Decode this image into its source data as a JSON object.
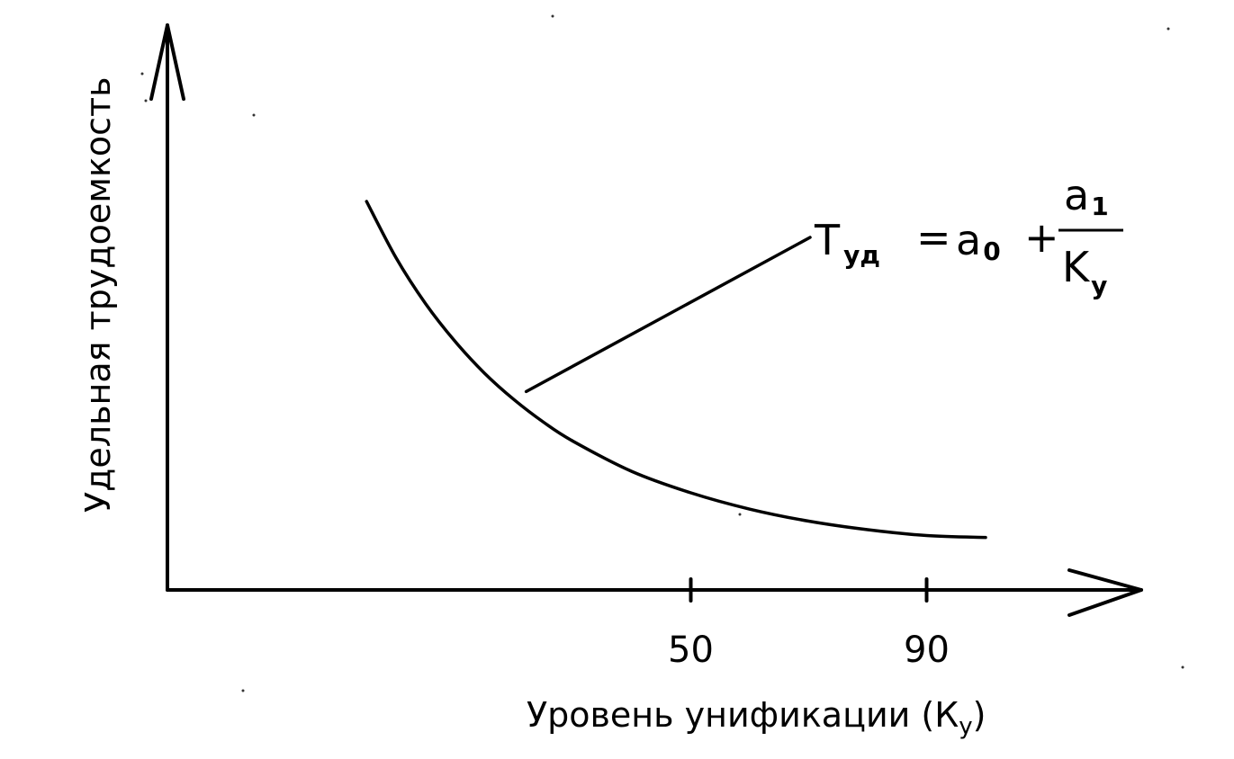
{
  "chart_data": {
    "type": "line",
    "title": "",
    "xlabel": "Уровень унификации (К",
    "xlabel_sub": "у",
    "xlabel_close": ")",
    "ylabel": "Удельная трудоемкость",
    "xticks": [
      {
        "value": 50,
        "label": "50"
      },
      {
        "value": 90,
        "label": "90"
      }
    ],
    "xlim": [
      -20,
      135
    ],
    "ylim": [
      0,
      1.2
    ],
    "grid": false,
    "legend": "none",
    "series": [
      {
        "x": [
          -5,
          0,
          5,
          10,
          15,
          20,
          25,
          30,
          40,
          50,
          60,
          70,
          80,
          90,
          100
        ],
        "y": [
          1.0,
          0.855,
          0.737,
          0.64,
          0.558,
          0.49,
          0.432,
          0.383,
          0.305,
          0.25,
          0.208,
          0.177,
          0.155,
          0.14,
          0.135
        ]
      }
    ],
    "annotation": {
      "point_x": 23,
      "formula": {
        "lhs": "T",
        "lhs_sub": "уд",
        "eq": "=",
        "a0": "a",
        "a0_sub": "0",
        "plus": "+",
        "num": "a",
        "num_sub": "1",
        "den": "K",
        "den_sub": "у"
      }
    },
    "colors": {
      "ink": "#000000",
      "background": "#ffffff"
    }
  }
}
